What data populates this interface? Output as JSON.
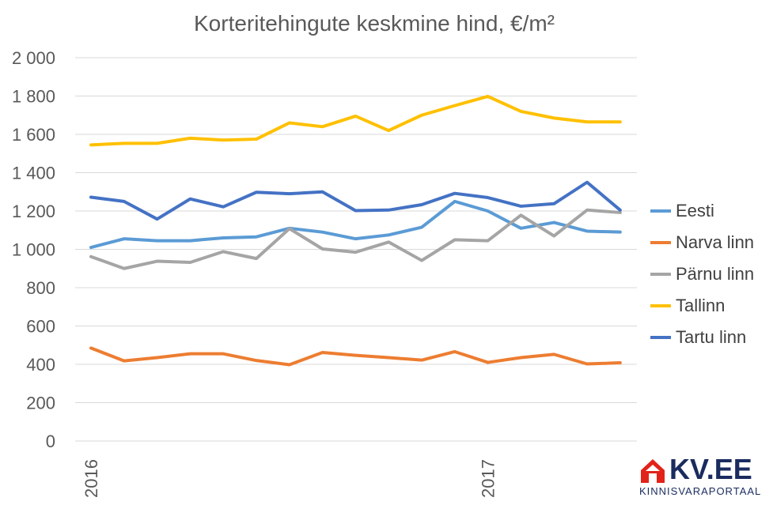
{
  "chart_data": {
    "type": "line",
    "title": "Korteritehingute keskmine hind, €/m²",
    "xlabel": "",
    "ylabel": "",
    "ylim": [
      0,
      2000
    ],
    "yticks": [
      0,
      200,
      400,
      600,
      800,
      1000,
      1200,
      1400,
      1600,
      1800,
      2000
    ],
    "ytick_labels": [
      "0",
      "200",
      "400",
      "600",
      "800",
      "1 000",
      "1 200",
      "1 400",
      "1 600",
      "1 800",
      "2 000"
    ],
    "x_count": 17,
    "xtick_labels": [
      {
        "index": 0,
        "label": "2016"
      },
      {
        "index": 12,
        "label": "2017"
      }
    ],
    "grid": true,
    "legend_position": "right",
    "series": [
      {
        "name": "Eesti",
        "color": "#5B9BD5",
        "values": [
          1010,
          1055,
          1045,
          1045,
          1060,
          1065,
          1110,
          1090,
          1055,
          1075,
          1115,
          1250,
          1200,
          1110,
          1140,
          1095,
          1090
        ]
      },
      {
        "name": "Narva linn",
        "color": "#ED7D31",
        "values": [
          485,
          418,
          435,
          455,
          455,
          420,
          398,
          462,
          447,
          435,
          422,
          466,
          410,
          435,
          452,
          402,
          408
        ]
      },
      {
        "name": "Pärnu linn",
        "color": "#A5A5A5",
        "values": [
          962,
          900,
          938,
          932,
          988,
          952,
          1108,
          1002,
          985,
          1038,
          942,
          1050,
          1045,
          1178,
          1070,
          1205,
          1192
        ]
      },
      {
        "name": "Tallinn",
        "color": "#FFC000",
        "values": [
          1545,
          1553,
          1553,
          1580,
          1570,
          1575,
          1660,
          1640,
          1695,
          1620,
          1700,
          1750,
          1798,
          1720,
          1685,
          1665,
          1665
        ]
      },
      {
        "name": "Tartu linn",
        "color": "#4472C4",
        "values": [
          1272,
          1250,
          1158,
          1263,
          1222,
          1298,
          1290,
          1300,
          1202,
          1205,
          1233,
          1292,
          1270,
          1225,
          1238,
          1350,
          1205
        ]
      }
    ]
  },
  "brand": {
    "name": "KV.EE",
    "tagline": "KINNISVARAPORTAAL",
    "mark_icon": "house-icon",
    "color": "#1A2B5F",
    "accent": "#E2231A"
  }
}
